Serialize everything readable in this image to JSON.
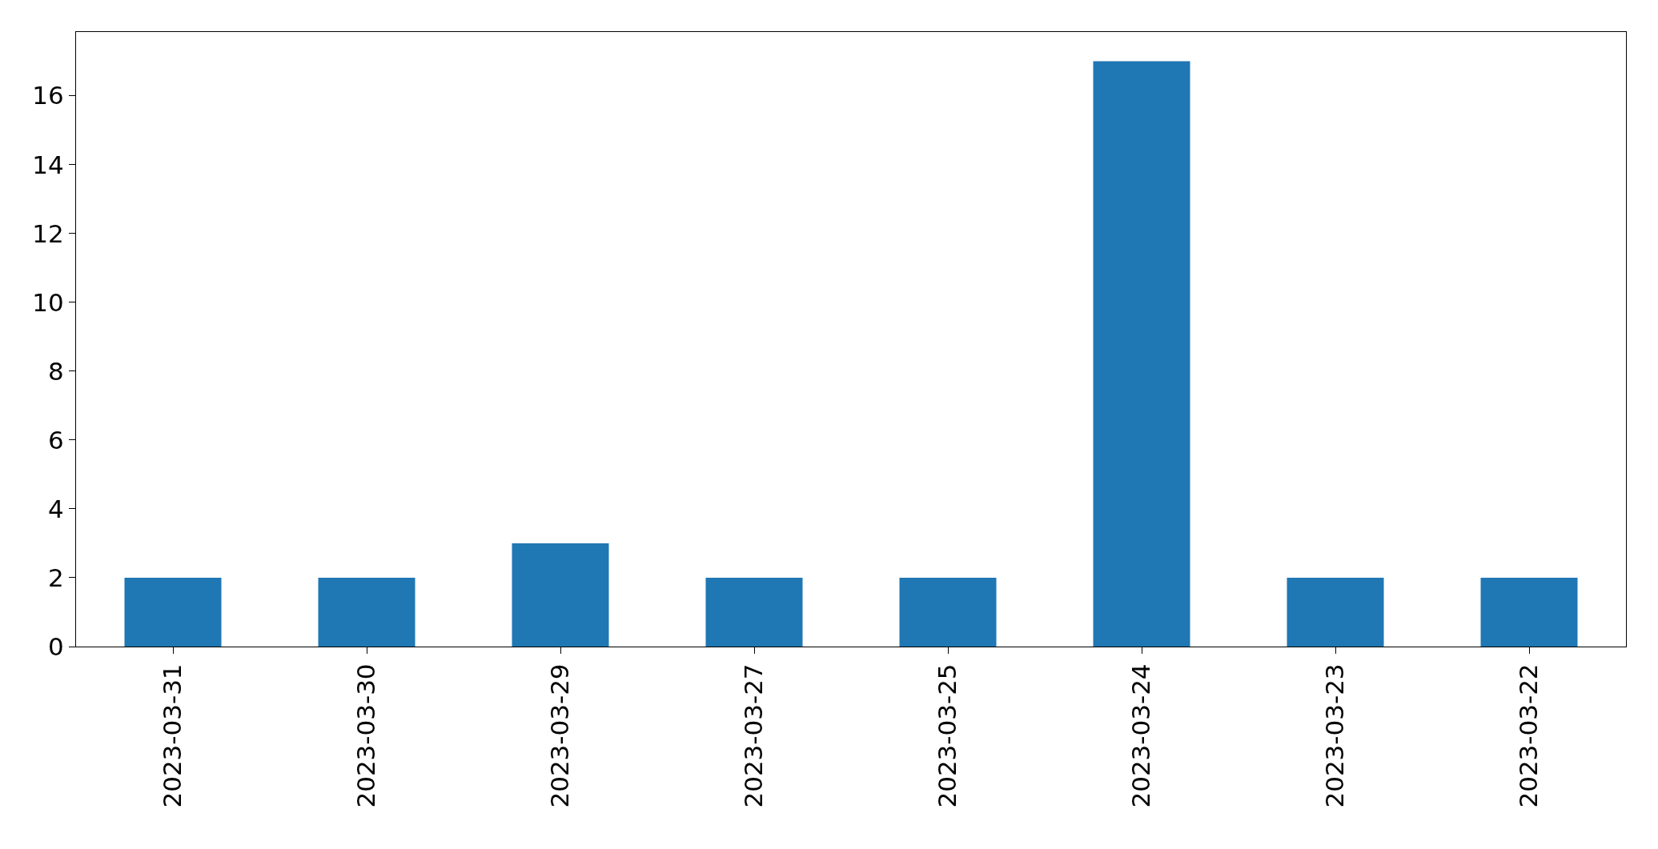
{
  "chart_data": {
    "type": "bar",
    "categories": [
      "2023-03-31",
      "2023-03-30",
      "2023-03-29",
      "2023-03-27",
      "2023-03-25",
      "2023-03-24",
      "2023-03-23",
      "2023-03-22"
    ],
    "values": [
      2,
      2,
      3,
      2,
      2,
      17,
      2,
      2
    ],
    "color": "#1f77b4",
    "ylim": [
      0,
      17.85
    ],
    "yticks": [
      0,
      2,
      4,
      6,
      8,
      10,
      12,
      14,
      16
    ]
  }
}
